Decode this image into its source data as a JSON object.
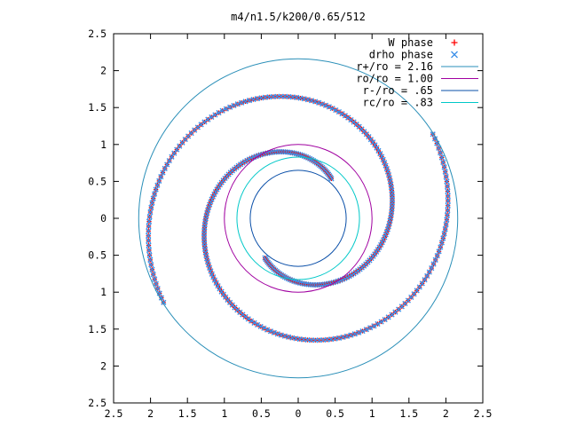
{
  "chart_data": {
    "type": "scatter",
    "title": "m4/n1.5/k200/0.65/512",
    "xlim": [
      -2.5,
      2.5
    ],
    "ylim": [
      -2.5,
      2.5
    ],
    "x_tick_labels": [
      "2.5",
      "2",
      "1.5",
      "1",
      "0.5",
      "0",
      "0.5",
      "1",
      "1.5",
      "2",
      "2.5"
    ],
    "y_tick_labels": [
      "2.5",
      "2",
      "1.5",
      "1",
      "0.5",
      "0",
      "0.5",
      "1",
      "1.5",
      "2",
      "2.5"
    ],
    "grid": false,
    "legend_position": "top-right",
    "series": [
      {
        "name": "W phase",
        "marker": "+",
        "color": "#ff0000"
      },
      {
        "name": "drho phase",
        "marker": "x",
        "color": "#3a8fe8"
      }
    ],
    "circles": [
      {
        "name": "r+/ro = 2.16",
        "radius": 2.16,
        "color": "#2a8fb8"
      },
      {
        "name": "ro/ro = 1.00",
        "radius": 1.0,
        "color": "#a000a0"
      },
      {
        "name": "r-/ro = .65",
        "radius": 0.65,
        "color": "#0a4fa8"
      },
      {
        "name": "rc/ro = .83",
        "radius": 0.83,
        "color": "#00c8c8"
      }
    ],
    "spiral_arms": [
      {
        "r_start": 0.7,
        "r_end": 2.15,
        "theta_start_deg": 50,
        "turns": 0.95
      },
      {
        "r_start": 0.7,
        "r_end": 2.15,
        "theta_start_deg": 230,
        "turns": 0.95
      }
    ]
  }
}
